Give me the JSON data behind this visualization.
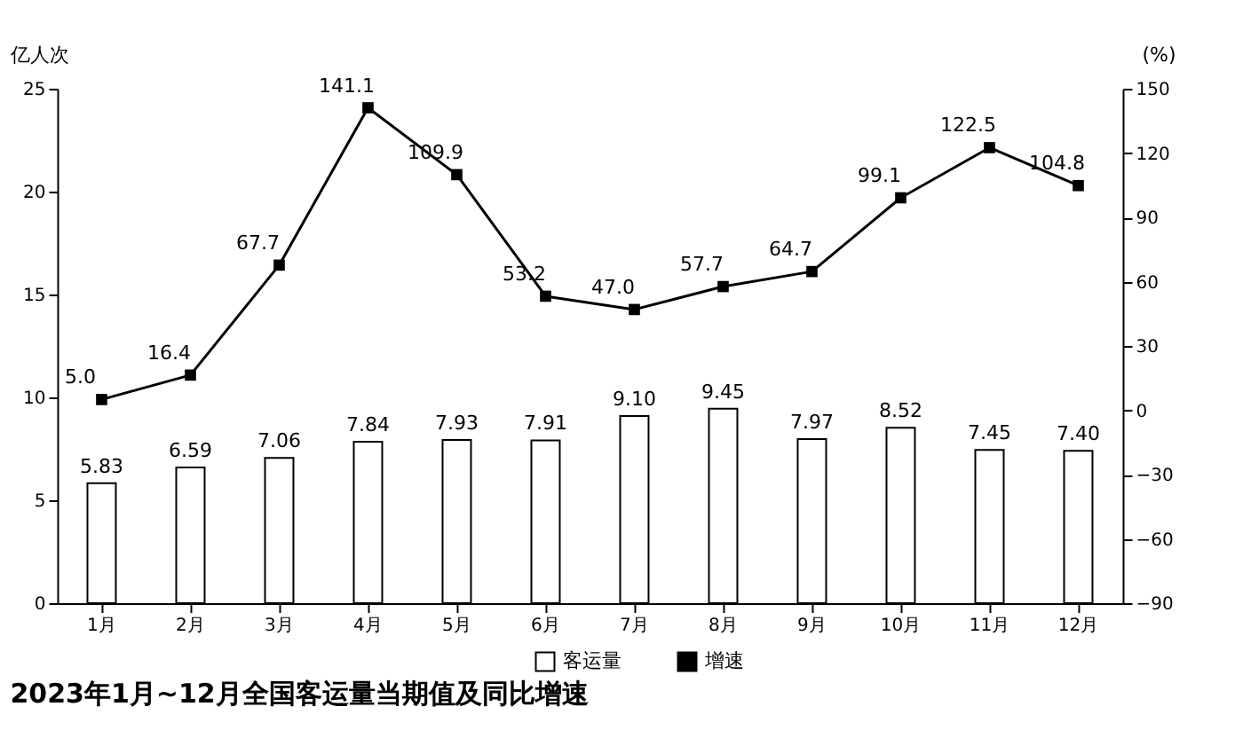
{
  "chart_data": {
    "type": "bar",
    "title": "2023年1月~12月全国客运量当期值及同比增速",
    "ylabel": "亿人次",
    "y2label": "(%)",
    "categories": [
      "1月",
      "2月",
      "3月",
      "4月",
      "5月",
      "6月",
      "7月",
      "8月",
      "9月",
      "10月",
      "11月",
      "12月"
    ],
    "series": [
      {
        "name": "客运量",
        "color": "#ffffff",
        "values": [
          5.83,
          6.59,
          7.06,
          7.84,
          7.93,
          7.91,
          9.1,
          9.45,
          7.97,
          8.52,
          7.45,
          7.4
        ],
        "value_labels": [
          "5.83",
          "6.59",
          "7.06",
          "7.84",
          "7.93",
          "7.91",
          "9.10",
          "9.45",
          "7.97",
          "8.52",
          "7.45",
          "7.40"
        ]
      },
      {
        "name": "增速",
        "type": "line",
        "axis": "y2",
        "color": "#000000",
        "marker": "square",
        "line_style": "solid",
        "values": [
          5.0,
          16.4,
          67.7,
          141.1,
          109.9,
          53.2,
          47.0,
          57.7,
          64.7,
          99.1,
          122.5,
          104.8
        ],
        "value_labels": [
          "5.0",
          "16.4",
          "67.7",
          "141.1",
          "109.9",
          "53.2",
          "47.0",
          "57.7",
          "64.7",
          "99.1",
          "122.5",
          "104.8"
        ]
      }
    ],
    "ylim": [
      0,
      25
    ],
    "yticks": [
      0,
      5,
      10,
      15,
      20,
      25
    ],
    "y2lim": [
      -90,
      150
    ],
    "y2ticks": [
      -90,
      -60,
      -30,
      0,
      30,
      60,
      90,
      120,
      150
    ],
    "legend": "bottom"
  }
}
